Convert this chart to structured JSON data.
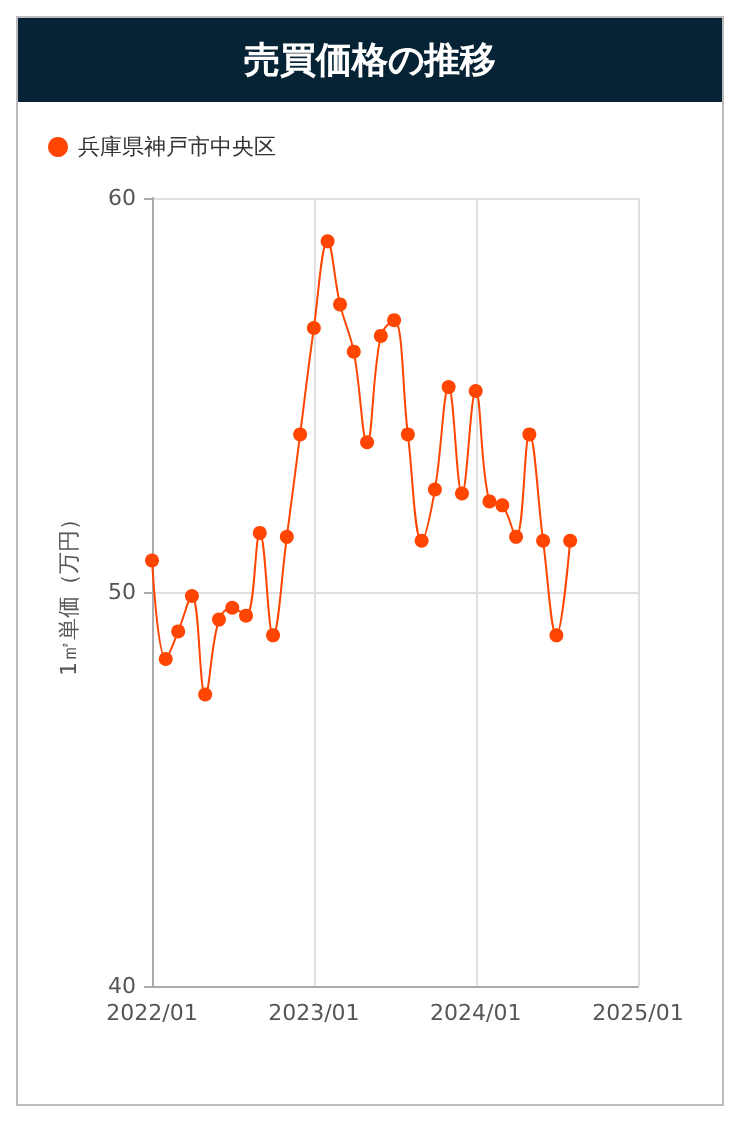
{
  "chart_data": {
    "type": "line",
    "title": "売買価格の推移",
    "ylabel": "1㎡単価（万円）",
    "x": [
      "2022-01",
      "2022-02",
      "2022-03",
      "2022-04",
      "2022-05",
      "2022-06",
      "2022-07",
      "2022-08",
      "2022-09",
      "2022-10",
      "2022-11",
      "2022-12",
      "2023-01",
      "2023-02",
      "2023-03",
      "2023-04",
      "2023-05",
      "2023-06",
      "2023-07",
      "2023-08",
      "2023-09",
      "2023-10",
      "2023-11",
      "2023-12",
      "2024-01",
      "2024-02",
      "2024-03",
      "2024-04",
      "2024-05",
      "2024-06",
      "2024-07",
      "2024-08"
    ],
    "series": [
      {
        "name": "兵庫県神戸市中央区",
        "color": "#ff4500",
        "values": [
          50.8,
          48.3,
          49.0,
          49.9,
          47.4,
          49.3,
          49.6,
          49.4,
          51.5,
          48.9,
          51.4,
          54.0,
          56.7,
          58.9,
          57.3,
          56.1,
          53.8,
          56.5,
          56.9,
          54.0,
          51.3,
          52.6,
          55.2,
          52.5,
          55.1,
          52.3,
          52.2,
          51.4,
          54.0,
          51.3,
          48.9,
          51.3
        ]
      }
    ],
    "xlim": [
      "2022-01",
      "2025-01"
    ],
    "xticks": [
      {
        "value": "2022-01",
        "label": "2022/01"
      },
      {
        "value": "2023-01",
        "label": "2023/01"
      },
      {
        "value": "2024-01",
        "label": "2024/01"
      },
      {
        "value": "2025-01",
        "label": "2025/01"
      }
    ],
    "ylim": [
      40,
      60
    ],
    "yticks": [
      40,
      50,
      60
    ],
    "grid": true,
    "legend": "top left",
    "marker": "circle",
    "line_style": "solid"
  }
}
